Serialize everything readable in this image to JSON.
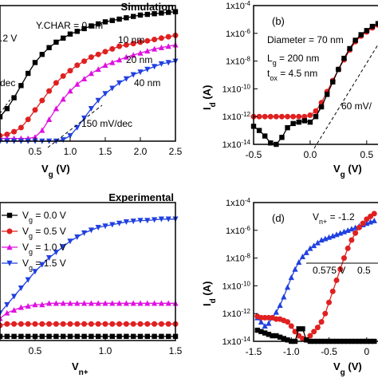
{
  "chart_data": [
    {
      "id": "a",
      "type": "scatter",
      "title": "Simulation",
      "xlabel": "V_g (V)",
      "ylabel": "",
      "xlim": [
        0,
        2.5
      ],
      "ylim_norm": [
        0,
        1
      ],
      "xticks": [
        "0.5",
        "1.0",
        "1.5",
        "2.0",
        "2.5"
      ],
      "xtick_values": [
        0.5,
        1.0,
        1.5,
        2.0,
        2.5
      ],
      "annotations": [
        "Y.CHAR = 0 nm",
        "10 nm",
        "20 nm",
        "40 nm",
        ".2 V",
        "dec",
        "150 mV/dec"
      ],
      "series": [
        {
          "name": "0 nm",
          "color": "#000000",
          "marker": "square",
          "x": [
            0,
            0.1,
            0.2,
            0.3,
            0.4,
            0.5,
            0.6,
            0.7,
            0.8,
            0.9,
            1.0,
            1.1,
            1.2,
            1.3,
            1.4,
            1.5,
            1.6,
            1.7,
            1.8,
            1.9,
            2.0,
            2.1,
            2.2,
            2.3,
            2.4,
            2.5
          ],
          "y": [
            0.18,
            0.24,
            0.32,
            0.41,
            0.5,
            0.58,
            0.64,
            0.69,
            0.73,
            0.76,
            0.79,
            0.81,
            0.83,
            0.85,
            0.865,
            0.88,
            0.89,
            0.9,
            0.91,
            0.92,
            0.93,
            0.935,
            0.94,
            0.945,
            0.95,
            0.955
          ]
        },
        {
          "name": "10 nm",
          "color": "#e02020",
          "marker": "circle",
          "x": [
            0,
            0.1,
            0.2,
            0.3,
            0.4,
            0.5,
            0.6,
            0.7,
            0.8,
            0.9,
            1.0,
            1.1,
            1.2,
            1.3,
            1.4,
            1.5,
            1.6,
            1.7,
            1.8,
            1.9,
            2.0,
            2.1,
            2.2,
            2.3,
            2.4,
            2.5
          ],
          "y": [
            0.04,
            0.05,
            0.07,
            0.1,
            0.16,
            0.23,
            0.3,
            0.37,
            0.43,
            0.48,
            0.52,
            0.56,
            0.59,
            0.62,
            0.64,
            0.66,
            0.68,
            0.7,
            0.71,
            0.72,
            0.73,
            0.74,
            0.75,
            0.76,
            0.77,
            0.78
          ]
        },
        {
          "name": "20 nm",
          "color": "#e010e0",
          "marker": "triangle",
          "x": [
            0,
            0.1,
            0.2,
            0.3,
            0.4,
            0.5,
            0.6,
            0.7,
            0.8,
            0.9,
            1.0,
            1.1,
            1.2,
            1.3,
            1.4,
            1.5,
            1.6,
            1.7,
            1.8,
            1.9,
            2.0,
            2.1,
            2.2,
            2.3,
            2.4,
            2.5
          ],
          "y": [
            0.02,
            0.02,
            0.02,
            0.02,
            0.02,
            0.03,
            0.08,
            0.16,
            0.24,
            0.31,
            0.37,
            0.42,
            0.46,
            0.5,
            0.53,
            0.56,
            0.58,
            0.6,
            0.62,
            0.635,
            0.65,
            0.665,
            0.68,
            0.69,
            0.7,
            0.71
          ]
        },
        {
          "name": "40 nm",
          "color": "#2040e0",
          "marker": "triangle-down",
          "x": [
            0,
            0.1,
            0.2,
            0.3,
            0.4,
            0.5,
            0.6,
            0.7,
            0.8,
            0.9,
            1.0,
            1.1,
            1.2,
            1.3,
            1.4,
            1.5,
            1.6,
            1.7,
            1.8,
            1.9,
            2.0,
            2.1,
            2.2,
            2.3,
            2.4,
            2.5
          ],
          "y": [
            0.0,
            0.0,
            0.0,
            0.0,
            0.0,
            0.0,
            0.0,
            0.0,
            0.0,
            0.01,
            0.04,
            0.1,
            0.17,
            0.24,
            0.3,
            0.35,
            0.39,
            0.43,
            0.46,
            0.49,
            0.51,
            0.53,
            0.55,
            0.57,
            0.58,
            0.59
          ]
        }
      ]
    },
    {
      "id": "b",
      "type": "scatter",
      "panel_label": "(b)",
      "xlabel": "V_g (V)",
      "ylabel": "I_d (A)",
      "xlim": [
        -0.5,
        0.6
      ],
      "ylim_log": [
        -14,
        -4
      ],
      "xticks": [
        "-0.5",
        "0.0",
        "0.5"
      ],
      "xtick_values": [
        -0.5,
        0.0,
        0.5
      ],
      "yticks": [
        "1x10-4",
        "1x10-6",
        "1x10-8",
        "1x10-10",
        "1x10-12",
        "1x10-14"
      ],
      "ytick_values": [
        -4,
        -6,
        -8,
        -10,
        -12,
        -14
      ],
      "annotations": [
        "Diameter = 70 nm",
        "L_g = 200 nm",
        "t_ox = 4.5 nm",
        "60 mV/"
      ],
      "series": [
        {
          "name": "",
          "color": "#e02020",
          "marker": "circle",
          "x": [
            -0.5,
            -0.45,
            -0.4,
            -0.35,
            -0.3,
            -0.25,
            -0.2,
            -0.15,
            -0.1,
            -0.05,
            0.0,
            0.05,
            0.1,
            0.15,
            0.2,
            0.25,
            0.3,
            0.35,
            0.4,
            0.45,
            0.5,
            0.55,
            0.6
          ],
          "log_y": [
            -12,
            -12,
            -12,
            -12,
            -12,
            -12,
            -12,
            -12,
            -12,
            -12,
            -11.9,
            -11.6,
            -11.0,
            -10.2,
            -9.4,
            -8.6,
            -7.9,
            -7.2,
            -6.6,
            -6.2,
            -5.9,
            -5.6,
            -5.4
          ]
        },
        {
          "name": "",
          "color": "#000000",
          "marker": "square",
          "x": [
            -0.5,
            -0.45,
            -0.4,
            -0.35,
            -0.3,
            -0.25,
            -0.2,
            -0.15,
            -0.1,
            -0.05,
            0.0,
            0.05,
            0.1,
            0.15,
            0.2,
            0.25,
            0.3,
            0.35,
            0.4,
            0.45,
            0.5,
            0.55,
            0.6
          ],
          "log_y": [
            -12.7,
            -13.0,
            -13.4,
            -13.9,
            -14.0,
            -13.5,
            -12.8,
            -12.5,
            -12.4,
            -12.3,
            -12.4,
            -12.0,
            -11.3,
            -10.4,
            -9.5,
            -8.6,
            -7.8,
            -7.1,
            -6.5,
            -6.1,
            -5.8,
            -5.5,
            -5.3
          ]
        }
      ]
    },
    {
      "id": "c",
      "type": "scatter",
      "title": "Experimental",
      "xlabel": "V_n+",
      "ylabel": "",
      "xlim": [
        0.25,
        1.5
      ],
      "ylim_norm": [
        0,
        1
      ],
      "xticks": [
        "0.5",
        "1.0",
        "1.5"
      ],
      "xtick_values": [
        0.5,
        1.0,
        1.5
      ],
      "legend": [
        {
          "label": "V_g = 0.0 V",
          "color": "#000000",
          "marker": "square"
        },
        {
          "label": "V_g = 0.5 V",
          "color": "#e02020",
          "marker": "circle"
        },
        {
          "label": "V_g = 1.0 V",
          "color": "#e010e0",
          "marker": "triangle"
        },
        {
          "label": "V_g = 1.5 V",
          "color": "#2040e0",
          "marker": "triangle-down"
        }
      ],
      "series": [
        {
          "name": "V_g = 0.0 V",
          "color": "#000000",
          "marker": "square",
          "x": [
            0.25,
            0.3,
            0.35,
            0.4,
            0.45,
            0.5,
            0.55,
            0.6,
            0.65,
            0.7,
            0.75,
            0.8,
            0.85,
            0.9,
            0.95,
            1.0,
            1.05,
            1.1,
            1.15,
            1.2,
            1.25,
            1.3,
            1.35,
            1.4,
            1.45,
            1.5
          ],
          "y": [
            0.03,
            0.03,
            0.03,
            0.03,
            0.03,
            0.03,
            0.03,
            0.03,
            0.03,
            0.03,
            0.03,
            0.03,
            0.03,
            0.03,
            0.03,
            0.03,
            0.03,
            0.03,
            0.03,
            0.03,
            0.03,
            0.03,
            0.03,
            0.03,
            0.03,
            0.03
          ]
        },
        {
          "name": "V_g = 0.5 V",
          "color": "#e02020",
          "marker": "circle",
          "x": [
            0.25,
            0.3,
            0.35,
            0.4,
            0.45,
            0.5,
            0.55,
            0.6,
            0.65,
            0.7,
            0.75,
            0.8,
            0.85,
            0.9,
            0.95,
            1.0,
            1.05,
            1.1,
            1.15,
            1.2,
            1.25,
            1.3,
            1.35,
            1.4,
            1.45,
            1.5
          ],
          "y": [
            0.11,
            0.12,
            0.12,
            0.12,
            0.12,
            0.12,
            0.12,
            0.12,
            0.12,
            0.12,
            0.12,
            0.12,
            0.12,
            0.12,
            0.12,
            0.12,
            0.12,
            0.12,
            0.12,
            0.12,
            0.12,
            0.12,
            0.12,
            0.12,
            0.12,
            0.12
          ]
        },
        {
          "name": "V_g = 1.0 V",
          "color": "#e010e0",
          "marker": "triangle",
          "x": [
            0.25,
            0.3,
            0.35,
            0.4,
            0.45,
            0.5,
            0.55,
            0.6,
            0.65,
            0.7,
            0.75,
            0.8,
            0.85,
            0.9,
            0.95,
            1.0,
            1.05,
            1.1,
            1.15,
            1.2,
            1.25,
            1.3,
            1.35,
            1.4,
            1.45,
            1.5
          ],
          "y": [
            0.16,
            0.2,
            0.22,
            0.24,
            0.25,
            0.26,
            0.26,
            0.27,
            0.27,
            0.27,
            0.27,
            0.27,
            0.27,
            0.27,
            0.27,
            0.27,
            0.27,
            0.27,
            0.27,
            0.27,
            0.27,
            0.27,
            0.27,
            0.27,
            0.27,
            0.27
          ]
        },
        {
          "name": "V_g = 1.5 V",
          "color": "#2040e0",
          "marker": "triangle-down",
          "x": [
            0.25,
            0.3,
            0.35,
            0.4,
            0.45,
            0.5,
            0.55,
            0.6,
            0.65,
            0.7,
            0.75,
            0.8,
            0.85,
            0.9,
            0.95,
            1.0,
            1.05,
            1.1,
            1.15,
            1.2,
            1.25,
            1.3,
            1.35,
            1.4,
            1.45,
            1.5
          ],
          "y": [
            0.2,
            0.26,
            0.32,
            0.38,
            0.44,
            0.5,
            0.55,
            0.6,
            0.64,
            0.68,
            0.72,
            0.75,
            0.78,
            0.8,
            0.82,
            0.83,
            0.84,
            0.85,
            0.86,
            0.865,
            0.87,
            0.87,
            0.875,
            0.88,
            0.88,
            0.88
          ]
        }
      ]
    },
    {
      "id": "d",
      "type": "scatter",
      "panel_label": "(d)",
      "xlabel": "V_g (V)",
      "ylabel": "I_d (A)",
      "xlim": [
        -1.5,
        0.15
      ],
      "ylim_log": [
        -14,
        -4
      ],
      "xticks": [
        "-1.5",
        "-1.0",
        "-0.5",
        "0"
      ],
      "xtick_values": [
        -1.5,
        -1.0,
        -0.5,
        0.0
      ],
      "yticks": [
        "1x10-4",
        "1x10-6",
        "1x10-8",
        "1x10-10",
        "1x10-12",
        "1x10-14"
      ],
      "ytick_values": [
        -4,
        -6,
        -8,
        -10,
        -12,
        -14
      ],
      "annotations": [
        "V_n+ = -1.2",
        "0.575 V",
        "0.5"
      ],
      "series": [
        {
          "name": "",
          "color": "#2040e0",
          "marker": "triangle",
          "x": [
            -1.45,
            -1.4,
            -1.35,
            -1.3,
            -1.25,
            -1.2,
            -1.15,
            -1.1,
            -1.05,
            -1.0,
            -0.95,
            -0.9,
            -0.85,
            -0.8,
            -0.75,
            -0.7,
            -0.65,
            -0.6,
            -0.55,
            -0.5,
            -0.45,
            -0.4,
            -0.35,
            -0.3,
            -0.25,
            -0.2,
            -0.15,
            -0.1,
            -0.05,
            0.0,
            0.05,
            0.1
          ],
          "log_y": [
            -12.3,
            -12.6,
            -12.9,
            -12.7,
            -12.3,
            -11.9,
            -11.4,
            -10.8,
            -10.1,
            -9.4,
            -8.8,
            -8.3,
            -7.9,
            -7.6,
            -7.3,
            -7.1,
            -6.9,
            -6.7,
            -6.6,
            -6.5,
            -6.4,
            -6.3,
            -6.2,
            -6.1,
            -6.0,
            -5.9,
            -5.8,
            -5.7,
            -5.6,
            -5.5,
            -5.4,
            -5.3
          ]
        },
        {
          "name": "",
          "color": "#e02020",
          "marker": "circle",
          "x": [
            -1.45,
            -1.4,
            -1.35,
            -1.3,
            -1.25,
            -1.2,
            -1.15,
            -1.1,
            -1.05,
            -1.0,
            -0.95,
            -0.9,
            -0.85,
            -0.8,
            -0.75,
            -0.7,
            -0.65,
            -0.6,
            -0.55,
            -0.5,
            -0.45,
            -0.4,
            -0.35,
            -0.3,
            -0.25,
            -0.2,
            -0.15,
            -0.1,
            -0.05,
            0.0,
            0.05,
            0.1
          ],
          "log_y": [
            -12.2,
            -12.3,
            -12.3,
            -12.3,
            -12.3,
            -12.4,
            -12.4,
            -12.5,
            -12.6,
            -12.9,
            -13.3,
            -13.6,
            -13.8,
            -13.9,
            -13.6,
            -13.3,
            -13.0,
            -12.6,
            -12.0,
            -11.2,
            -10.4,
            -9.6,
            -8.8,
            -8.0,
            -7.3,
            -6.7,
            -6.2,
            -5.8,
            -5.5,
            -5.2,
            -5.0,
            -4.8
          ]
        },
        {
          "name": "",
          "color": "#000000",
          "marker": "square",
          "x": [
            -1.45,
            -1.4,
            -1.35,
            -1.3,
            -1.25,
            -1.2,
            -1.15,
            -1.1,
            -1.05,
            -1.0,
            -0.95,
            -0.9,
            -0.85,
            -0.8,
            -0.75,
            -0.7,
            -0.65,
            -0.6,
            -0.55,
            -0.5,
            -0.45,
            -0.4,
            -0.35,
            -0.3,
            -0.25,
            -0.2,
            -0.15,
            -0.1,
            -0.05,
            0.0,
            0.05,
            0.1
          ],
          "log_y": [
            -13.2,
            -13.3,
            -13.4,
            -13.5,
            -13.6,
            -13.6,
            -13.7,
            -13.8,
            -13.9,
            -14.0,
            -14.0,
            -13.1,
            -13.1,
            -13.9,
            -14.0,
            -14.0,
            -14.0,
            -14.0,
            -14.0,
            -14.0,
            -14.0,
            -14.0,
            -14.0,
            -14.0,
            -14.0,
            -14.0,
            -14.0,
            -14.0,
            -14.0,
            -14.0,
            -14.0,
            -14.0
          ]
        }
      ]
    }
  ]
}
